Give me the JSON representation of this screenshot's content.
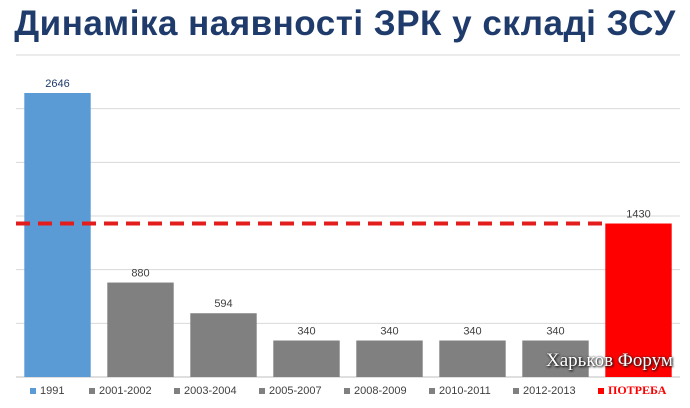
{
  "title": "Динаміка наявності ЗРК у складі ЗСУ",
  "watermark": "Харьков Форум",
  "colors": {
    "blue": "#5b9bd5",
    "gray": "#808080",
    "red": "#ff0000",
    "dashed": "#e31c1c",
    "title": "#1f3b6b",
    "grid": "#d9d9d9"
  },
  "chart_data": {
    "type": "bar",
    "title": "Динаміка наявності ЗРК у складі ЗСУ",
    "categories": [
      "1991",
      "2001-2002",
      "2003-2004",
      "2005-2007",
      "2008-2009",
      "2010-2011",
      "2012-2013",
      "ПОТРЕБА"
    ],
    "values": [
      2646,
      880,
      594,
      340,
      340,
      340,
      340,
      1430
    ],
    "data_labels": [
      "2646",
      "880",
      "594",
      "340",
      "340",
      "340",
      "340",
      "1430"
    ],
    "bar_colors": [
      "#5b9bd5",
      "#808080",
      "#808080",
      "#808080",
      "#808080",
      "#808080",
      "#808080",
      "#ff0000"
    ],
    "legend": [
      "1991",
      "2001-2002",
      "2003-2004",
      "2005-2007",
      "2008-2009",
      "2010-2011",
      "2012-2013",
      "ПОТРЕБА"
    ],
    "legend_placement": "bottom",
    "reference_line": {
      "value": 1430,
      "style": "dashed",
      "color": "#e31c1c"
    },
    "ylim": [
      0,
      3000
    ],
    "grid": true,
    "xlabel": "",
    "ylabel": ""
  }
}
